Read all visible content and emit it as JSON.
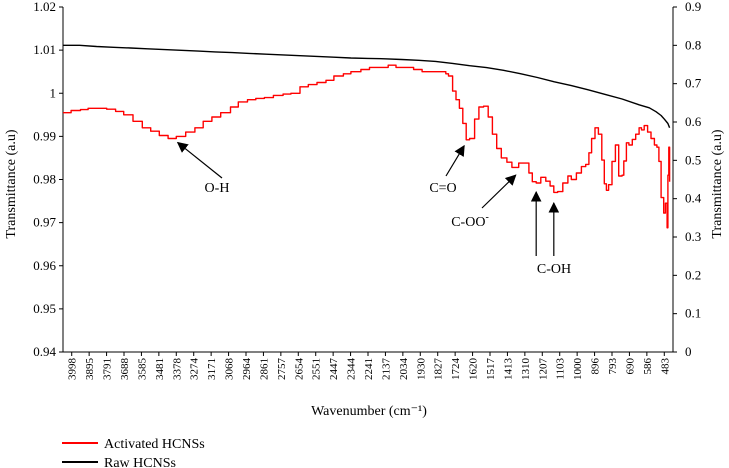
{
  "chart_data": {
    "type": "line",
    "title": "",
    "xlabel": "Wavenumber (cm⁻¹)",
    "ylabel": "Transmittance (a.u)",
    "y2label": "Transmittance (a.u)",
    "xlim": [
      3998,
      400
    ],
    "ylim": [
      0.94,
      1.02
    ],
    "y2lim": [
      0,
      0.9
    ],
    "y_ticks": [
      "0.94",
      "0.95",
      "0.96",
      "0.97",
      "0.98",
      "0.99",
      "1",
      "1.01",
      "1.02"
    ],
    "y2_ticks": [
      "0",
      "0.1",
      "0.2",
      "0.3",
      "0.4",
      "0.5",
      "0.6",
      "0.7",
      "0.8",
      "0.9"
    ],
    "x_ticks": [
      "3998",
      "3895",
      "3791",
      "3688",
      "3585",
      "3481",
      "3378",
      "3274",
      "3171",
      "3068",
      "2964",
      "2861",
      "2757",
      "2654",
      "2551",
      "2447",
      "2344",
      "2241",
      "2137",
      "2034",
      "1930",
      "1827",
      "1724",
      "1620",
      "1517",
      "1413",
      "1310",
      "1207",
      "1103",
      "1000",
      "896",
      "793",
      "690",
      "586",
      "483"
    ],
    "grid": false,
    "legend_position": "bottom-left",
    "series": [
      {
        "name": "Activated HCNSs",
        "color": "#ff0000",
        "axis": "left",
        "x": [
          3998,
          3950,
          3895,
          3850,
          3791,
          3740,
          3688,
          3640,
          3585,
          3530,
          3481,
          3430,
          3378,
          3330,
          3274,
          3220,
          3171,
          3120,
          3068,
          3010,
          2964,
          2910,
          2861,
          2810,
          2757,
          2700,
          2654,
          2600,
          2551,
          2500,
          2447,
          2400,
          2344,
          2300,
          2241,
          2190,
          2137,
          2080,
          2034,
          1980,
          1930,
          1880,
          1827,
          1780,
          1740,
          1724,
          1700,
          1680,
          1660,
          1640,
          1620,
          1600,
          1570,
          1545,
          1517,
          1490,
          1465,
          1440,
          1413,
          1380,
          1350,
          1310,
          1280,
          1250,
          1230,
          1207,
          1180,
          1150,
          1125,
          1103,
          1080,
          1050,
          1020,
          1000,
          970,
          940,
          915,
          896,
          880,
          860,
          840,
          820,
          805,
          793,
          780,
          760,
          740,
          720,
          700,
          690,
          675,
          660,
          640,
          620,
          600,
          586,
          570,
          550,
          530,
          510,
          495,
          483,
          470,
          455,
          445,
          435,
          430,
          425,
          420
        ],
        "values": [
          0.9955,
          0.996,
          0.9962,
          0.9965,
          0.9965,
          0.9963,
          0.9958,
          0.995,
          0.9935,
          0.992,
          0.9912,
          0.9902,
          0.9895,
          0.99,
          0.991,
          0.992,
          0.9935,
          0.9945,
          0.9955,
          0.9968,
          0.998,
          0.9985,
          0.9988,
          0.999,
          0.9995,
          0.9998,
          1.0,
          1.0015,
          1.002,
          1.0025,
          1.003,
          1.004,
          1.0045,
          1.005,
          1.0055,
          1.006,
          1.006,
          1.0065,
          1.006,
          1.006,
          1.0055,
          1.005,
          1.005,
          1.005,
          1.0045,
          1.004,
          1.0005,
          0.9985,
          0.9965,
          0.993,
          0.9892,
          0.9895,
          0.994,
          0.9968,
          0.997,
          0.9945,
          0.9905,
          0.9872,
          0.985,
          0.984,
          0.9828,
          0.9838,
          0.9838,
          0.9815,
          0.9795,
          0.9792,
          0.9805,
          0.9796,
          0.9785,
          0.977,
          0.9772,
          0.9792,
          0.9808,
          0.98,
          0.9815,
          0.983,
          0.9835,
          0.9862,
          0.9895,
          0.992,
          0.9905,
          0.9845,
          0.979,
          0.9775,
          0.9788,
          0.9842,
          0.988,
          0.9808,
          0.981,
          0.9843,
          0.9885,
          0.988,
          0.9893,
          0.9905,
          0.992,
          0.9915,
          0.9925,
          0.991,
          0.9895,
          0.988,
          0.9875,
          0.9842,
          0.9758,
          0.9722,
          0.9745,
          0.9688,
          0.981,
          0.9875,
          0.9795
        ]
      },
      {
        "name": "Raw HCNSs",
        "color": "#000000",
        "axis": "right",
        "x": [
          3998,
          3900,
          3800,
          3700,
          3600,
          3500,
          3400,
          3300,
          3200,
          3100,
          3000,
          2900,
          2800,
          2700,
          2600,
          2500,
          2400,
          2300,
          2200,
          2100,
          2000,
          1900,
          1800,
          1700,
          1600,
          1500,
          1400,
          1300,
          1200,
          1100,
          1000,
          900,
          800,
          700,
          600,
          540,
          500,
          470,
          450,
          430,
          420
        ],
        "values": [
          0.8,
          0.8,
          0.797,
          0.795,
          0.793,
          0.791,
          0.789,
          0.787,
          0.785,
          0.783,
          0.781,
          0.779,
          0.777,
          0.775,
          0.773,
          0.771,
          0.769,
          0.767,
          0.766,
          0.765,
          0.763,
          0.761,
          0.758,
          0.753,
          0.747,
          0.742,
          0.735,
          0.726,
          0.716,
          0.705,
          0.695,
          0.684,
          0.672,
          0.66,
          0.645,
          0.637,
          0.627,
          0.617,
          0.607,
          0.596,
          0.585
        ]
      }
    ],
    "annotations": [
      {
        "text": "O-H",
        "x": 3345,
        "y": 0.9895
      },
      {
        "text": "C=O",
        "x": 1620,
        "y": 0.9892
      },
      {
        "text": "C-OO",
        "sup": "-",
        "x": 1310,
        "y": 0.9824
      },
      {
        "text": "C-OH",
        "x": 1207,
        "y": 0.979
      },
      {
        "text": "",
        "x": 1103,
        "y": 0.977
      }
    ]
  }
}
